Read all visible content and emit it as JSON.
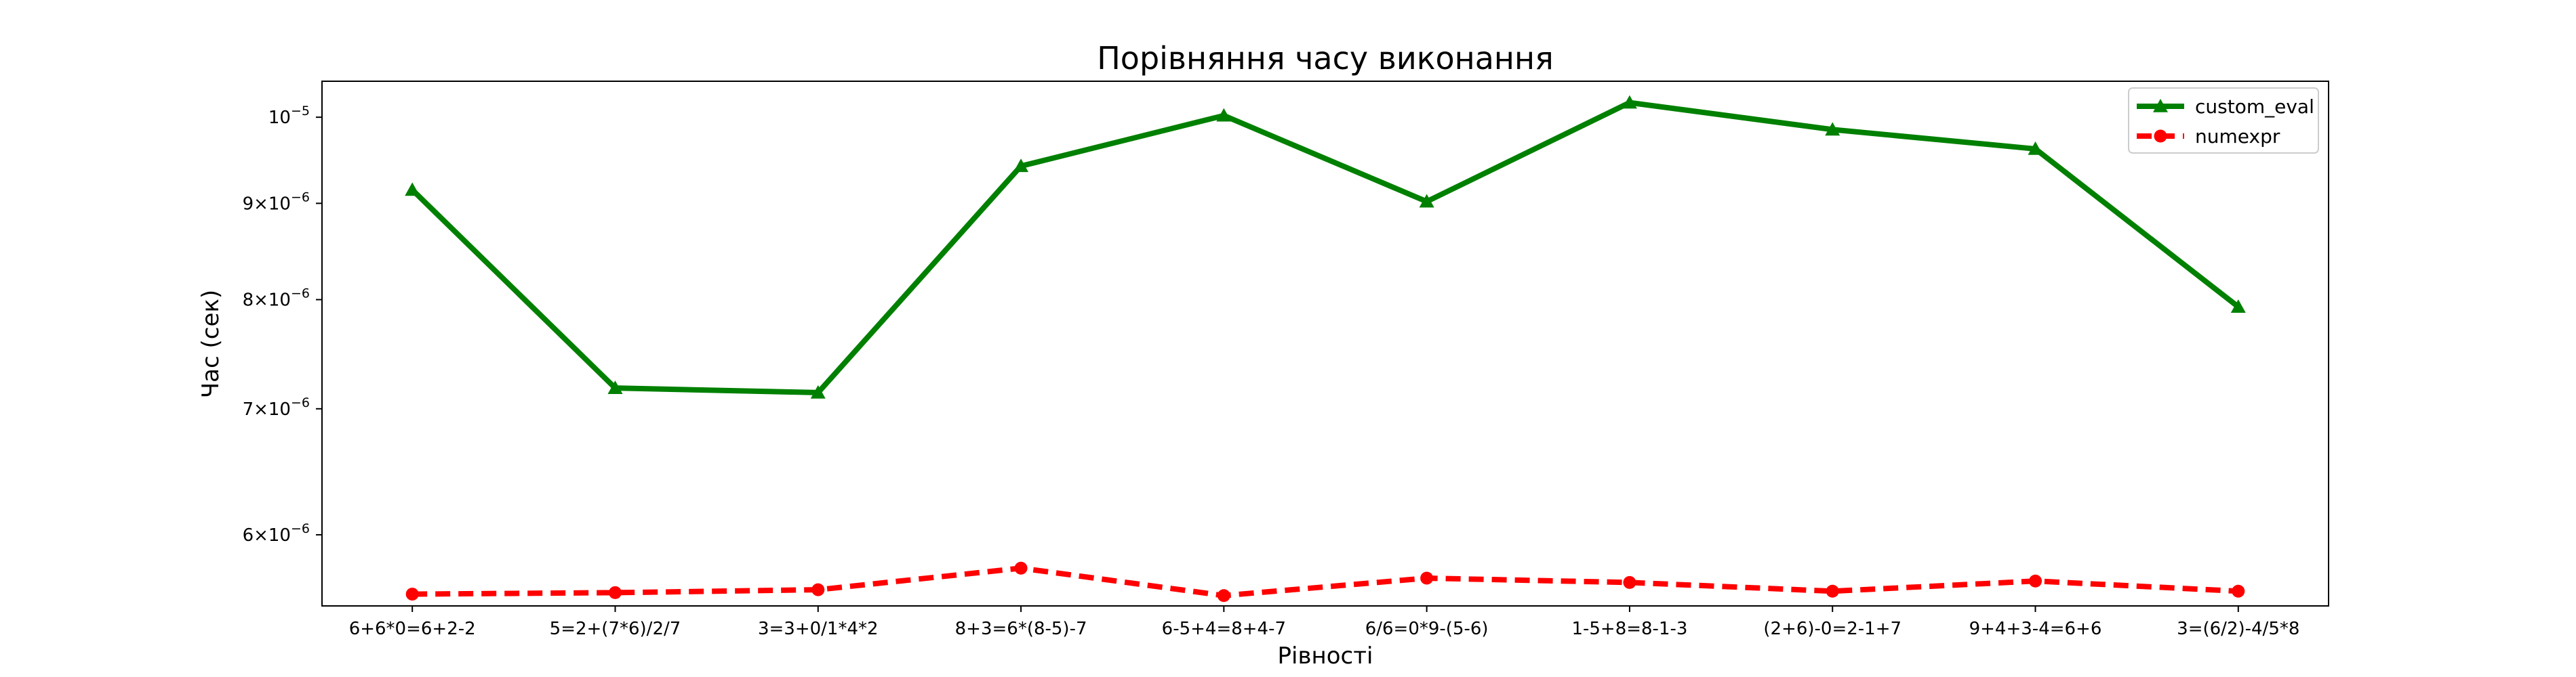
{
  "chart_data": {
    "type": "line",
    "title": "Порівняння часу виконання",
    "xlabel": "Рівності",
    "ylabel": "Час (сек)",
    "y_scale": "log",
    "ylim": [
      5.5e-06,
      1.045e-05
    ],
    "categories": [
      "6+6*0=6+2-2",
      "5=2+(7*6)/2/7",
      "3=3+0/1*4*2",
      "8+3=6*(8-5)-7",
      "6-5+4=8+4-7",
      "6/6=0*9-(5-6)",
      "1-5+8=8-1-3",
      "(2+6)-0=2-1+7",
      "9+4+3-4=6+6",
      "3=(6/2)-4/5*8"
    ],
    "yticks": [
      {
        "value": 1e-05,
        "base": "10",
        "exp": "−5"
      },
      {
        "value": 9e-06,
        "base": "9×10",
        "exp": "−6"
      },
      {
        "value": 8e-06,
        "base": "8×10",
        "exp": "−6"
      },
      {
        "value": 7e-06,
        "base": "7×10",
        "exp": "−6"
      },
      {
        "value": 6e-06,
        "base": "6×10",
        "exp": "−6"
      }
    ],
    "series": [
      {
        "name": "custom_eval",
        "color": "#008000",
        "marker": "triangle",
        "line_style": "solid",
        "values": [
          9.15e-06,
          7.18e-06,
          7.14e-06,
          9.42e-06,
          1.002e-05,
          9.02e-06,
          1.018e-05,
          9.85e-06,
          9.62e-06,
          7.93e-06
        ]
      },
      {
        "name": "numexpr",
        "color": "#ff0000",
        "marker": "circle",
        "line_style": "dashed",
        "values": [
          5.58e-06,
          5.59e-06,
          5.61e-06,
          5.76e-06,
          5.57e-06,
          5.69e-06,
          5.66e-06,
          5.6e-06,
          5.67e-06,
          5.6e-06
        ]
      }
    ],
    "grid": false,
    "legend_position": "top-right"
  }
}
